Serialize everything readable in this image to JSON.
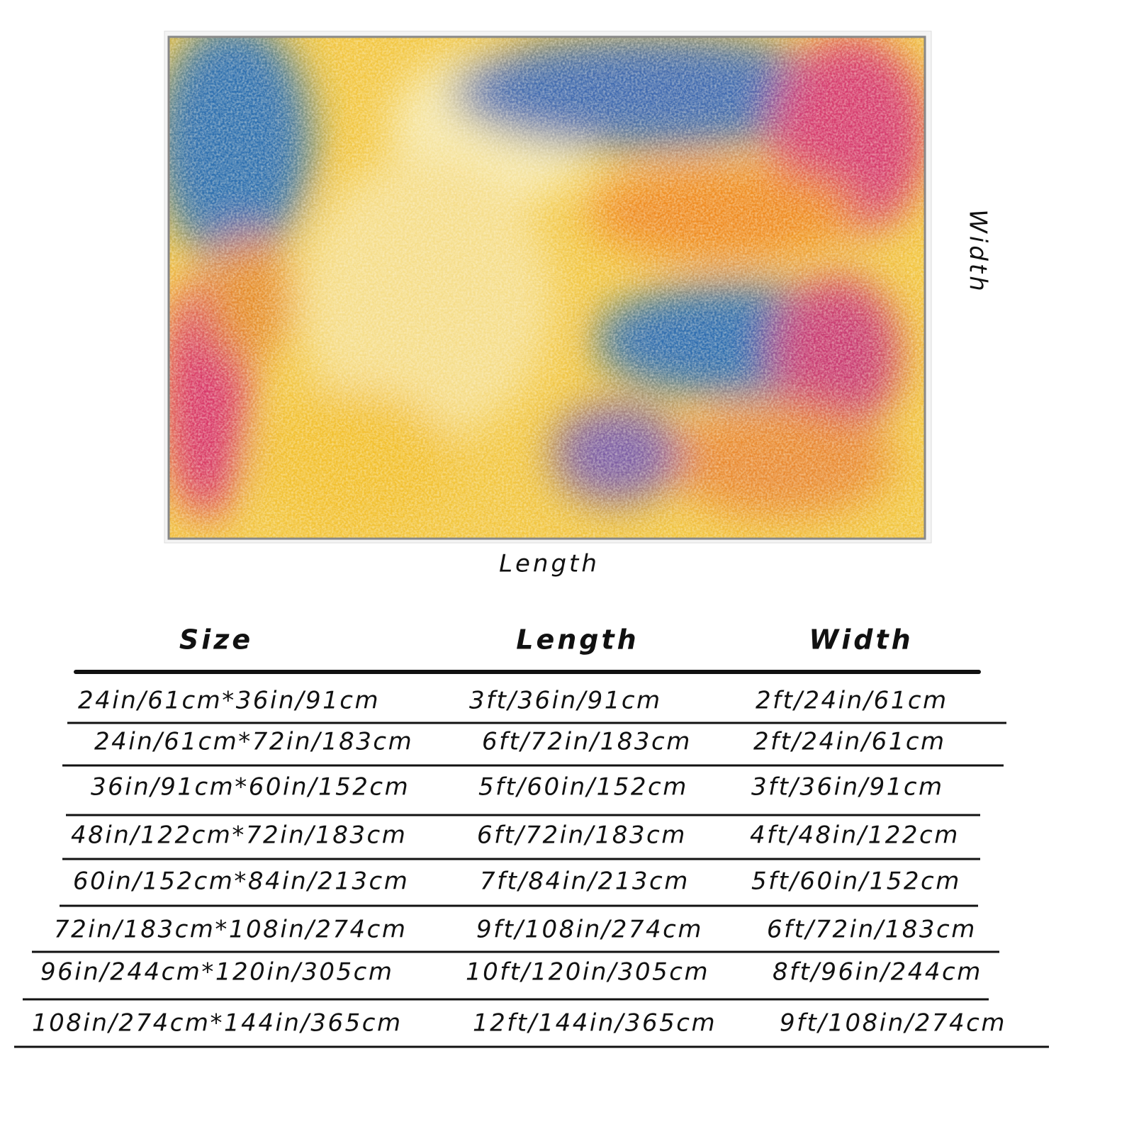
{
  "diagram": {
    "length_label": "Length",
    "width_label": "Width"
  },
  "table": {
    "headers": [
      "Size",
      "Length",
      "Width"
    ],
    "rows": [
      [
        "24in/61cm*36in/91cm",
        "3ft/36in/91cm",
        "2ft/24in/61cm"
      ],
      [
        "24in/61cm*72in/183cm",
        "6ft/72in/183cm",
        "2ft/24in/61cm"
      ],
      [
        "36in/91cm*60in/152cm",
        "5ft/60in/152cm",
        "3ft/36in/91cm"
      ],
      [
        "48in/122cm*72in/183cm",
        "6ft/72in/183cm",
        "4ft/48in/122cm"
      ],
      [
        "60in/152cm*84in/213cm",
        "7ft/84in/213cm",
        "5ft/60in/152cm"
      ],
      [
        "72in/183cm*108in/274cm",
        "9ft/108in/274cm",
        "6ft/72in/183cm"
      ],
      [
        "96in/244cm*120in/305cm",
        "10ft/120in/305cm",
        "8ft/96in/244cm"
      ],
      [
        "108in/274cm*144in/365cm",
        "12ft/144in/365cm",
        "9ft/108in/274cm"
      ]
    ]
  }
}
